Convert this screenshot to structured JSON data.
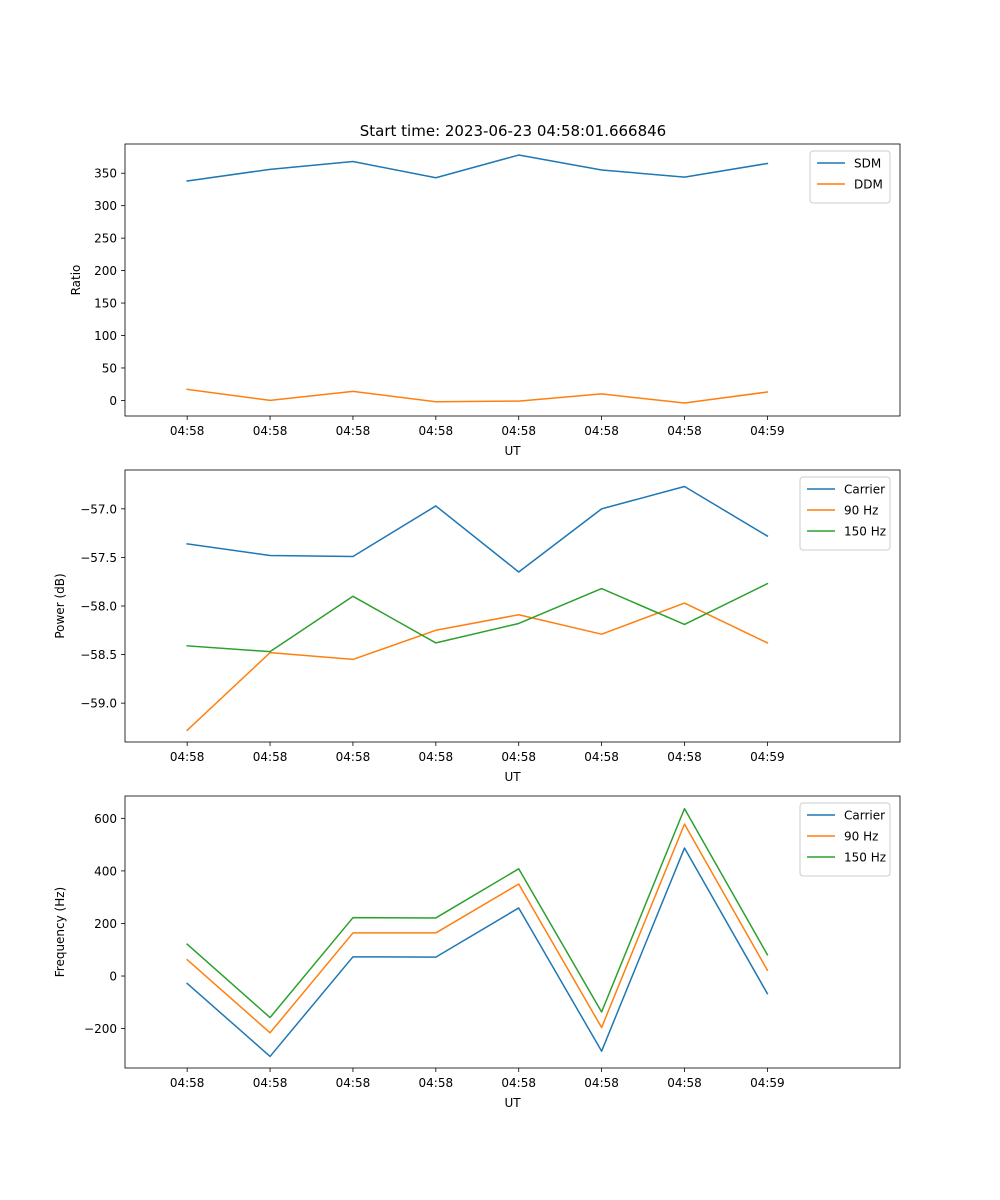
{
  "figure": {
    "title": "Start time: 2023-06-23 04:58:01.666846"
  },
  "colors": {
    "blue": "#1f77b4",
    "orange": "#ff7f0e",
    "green": "#2ca02c"
  },
  "chart_data": [
    {
      "type": "line",
      "title": "Start time: 2023-06-23 04:58:01.666846",
      "xlabel": "UT",
      "ylabel": "Ratio",
      "x_tick_labels": [
        "04:58",
        "04:58",
        "04:58",
        "04:58",
        "04:58",
        "04:58",
        "04:58",
        "04:59"
      ],
      "x_index_range": [
        -0.75,
        8.6
      ],
      "x": [
        0,
        1,
        2,
        3,
        4,
        5,
        6,
        7
      ],
      "ylim": [
        -24,
        395
      ],
      "yticks": [
        0,
        50,
        100,
        150,
        200,
        250,
        300,
        350
      ],
      "grid": false,
      "legend": "top-right",
      "series": [
        {
          "name": "SDM",
          "color": "#1f77b4",
          "values": [
            338,
            356,
            368,
            343,
            378,
            355,
            344,
            365
          ]
        },
        {
          "name": "DDM",
          "color": "#ff7f0e",
          "values": [
            17,
            0,
            14,
            -2,
            -1,
            10,
            -4,
            13
          ]
        }
      ]
    },
    {
      "type": "line",
      "title": "",
      "xlabel": "UT",
      "ylabel": "Power (dB)",
      "x_tick_labels": [
        "04:58",
        "04:58",
        "04:58",
        "04:58",
        "04:58",
        "04:58",
        "04:58",
        "04:59"
      ],
      "x_index_range": [
        -0.75,
        8.6
      ],
      "x": [
        0,
        1,
        2,
        3,
        4,
        5,
        6,
        7
      ],
      "ylim": [
        -59.4,
        -56.6
      ],
      "yticks": [
        -59.0,
        -58.5,
        -58.0,
        -57.5,
        -57.0
      ],
      "ytick_labels": [
        "−59.0",
        "−58.5",
        "−58.0",
        "−57.5",
        "−57.0"
      ],
      "grid": false,
      "legend": "top-right",
      "series": [
        {
          "name": "Carrier",
          "color": "#1f77b4",
          "values": [
            -57.36,
            -57.48,
            -57.49,
            -56.97,
            -57.65,
            -57.0,
            -56.77,
            -57.28
          ]
        },
        {
          "name": "90 Hz",
          "color": "#ff7f0e",
          "values": [
            -59.28,
            -58.48,
            -58.55,
            -58.25,
            -58.09,
            -58.29,
            -57.97,
            -58.38
          ]
        },
        {
          "name": "150 Hz",
          "color": "#2ca02c",
          "values": [
            -58.41,
            -58.47,
            -57.9,
            -58.38,
            -58.18,
            -57.82,
            -58.19,
            -57.77
          ]
        }
      ]
    },
    {
      "type": "line",
      "title": "",
      "xlabel": "UT",
      "ylabel": "Frequency (Hz)",
      "x_tick_labels": [
        "04:58",
        "04:58",
        "04:58",
        "04:58",
        "04:58",
        "04:58",
        "04:58",
        "04:59"
      ],
      "x_index_range": [
        -0.75,
        8.6
      ],
      "x": [
        0,
        1,
        2,
        3,
        4,
        5,
        6,
        7
      ],
      "ylim": [
        -350,
        685
      ],
      "yticks": [
        -200,
        0,
        200,
        400,
        600
      ],
      "ytick_labels": [
        "−200",
        "0",
        "200",
        "400",
        "600"
      ],
      "grid": false,
      "legend": "top-right",
      "series": [
        {
          "name": "Carrier",
          "color": "#1f77b4",
          "values": [
            -28,
            -306,
            73,
            72,
            259,
            -286,
            487,
            -67
          ]
        },
        {
          "name": "90 Hz",
          "color": "#ff7f0e",
          "values": [
            62,
            -216,
            164,
            164,
            350,
            -196,
            578,
            22
          ]
        },
        {
          "name": "150 Hz",
          "color": "#2ca02c",
          "values": [
            121,
            -158,
            222,
            221,
            408,
            -137,
            637,
            81
          ]
        }
      ]
    }
  ]
}
